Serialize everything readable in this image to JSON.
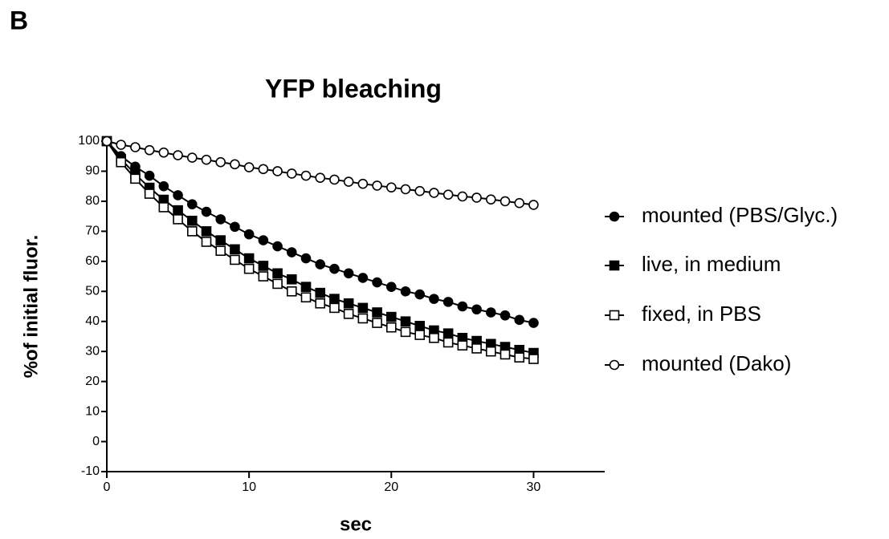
{
  "panel_label": "B",
  "chart_data": {
    "type": "line",
    "title": "YFP bleaching",
    "x_label": "sec",
    "y_label": "%of initial fluor.",
    "x": [
      0,
      1,
      2,
      3,
      4,
      5,
      6,
      7,
      8,
      9,
      10,
      11,
      12,
      13,
      14,
      15,
      16,
      17,
      18,
      19,
      20,
      21,
      22,
      23,
      24,
      25,
      26,
      27,
      28,
      29,
      30
    ],
    "xlim": [
      0,
      35
    ],
    "xticks": [
      0,
      10,
      20,
      30
    ],
    "ylim": [
      -10,
      100
    ],
    "yticks": [
      -10,
      0,
      10,
      20,
      30,
      40,
      50,
      60,
      70,
      80,
      90,
      100
    ],
    "legend": "right",
    "series": [
      {
        "name": "mounted (PBS/Glyc.)",
        "color": "#000000",
        "marker": "circle",
        "filled": true,
        "values": [
          100,
          95,
          91.5,
          88.5,
          85,
          82,
          79,
          76.5,
          74,
          71.5,
          69,
          67,
          65,
          63,
          61,
          59,
          57.5,
          56,
          54.5,
          53,
          51.5,
          50,
          49,
          47.5,
          46.5,
          45,
          44,
          43,
          42,
          40.5,
          39.5
        ]
      },
      {
        "name": "live, in medium",
        "color": "#000000",
        "marker": "square",
        "filled": true,
        "values": [
          100,
          94,
          89,
          84.5,
          80.5,
          77,
          73.5,
          70,
          67,
          64,
          61,
          58.5,
          56,
          54,
          51.5,
          49.5,
          47.5,
          46,
          44.5,
          43,
          41.5,
          40,
          38.5,
          37,
          36,
          34.5,
          33.5,
          32.5,
          31.5,
          30.5,
          29.5
        ]
      },
      {
        "name": "fixed, in PBS",
        "color": "#000000",
        "marker": "square",
        "filled": false,
        "values": [
          100,
          93,
          87.5,
          82.5,
          78,
          74,
          70,
          66.5,
          63.5,
          60.5,
          57.5,
          55,
          52.5,
          50,
          48,
          46,
          44.5,
          42.5,
          41,
          39.5,
          38,
          36.5,
          35.5,
          34.5,
          33,
          32,
          31,
          30,
          29,
          28,
          27.5
        ]
      },
      {
        "name": "mounted (Dako)",
        "color": "#000000",
        "marker": "circle",
        "filled": false,
        "values": [
          100,
          98.8,
          98,
          97,
          96.2,
          95.3,
          94.5,
          93.8,
          93,
          92.3,
          91.3,
          90.7,
          90,
          89.2,
          88.5,
          87.8,
          87.2,
          86.5,
          85.8,
          85.2,
          84.6,
          84,
          83.4,
          82.8,
          82.2,
          81.6,
          81.2,
          80.6,
          80,
          79.4,
          78.8
        ]
      }
    ]
  }
}
